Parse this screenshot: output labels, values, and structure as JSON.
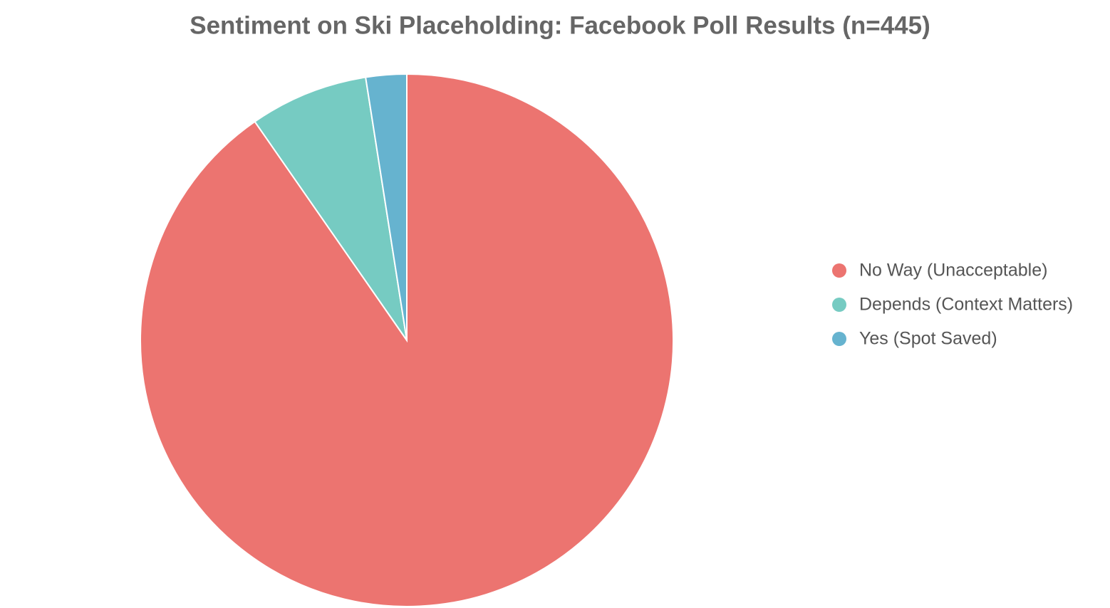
{
  "chart_data": {
    "type": "pie",
    "title": "Sentiment on Ski Placeholding: Facebook Poll Results (n=445)",
    "categories": [
      "No Way (Unacceptable)",
      "Depends (Context Matters)",
      "Yes (Spot Saved)"
    ],
    "values": [
      402,
      32,
      11
    ],
    "colors": [
      "#ec7470",
      "#76cbc2",
      "#66b3cf"
    ],
    "legend": "right"
  }
}
